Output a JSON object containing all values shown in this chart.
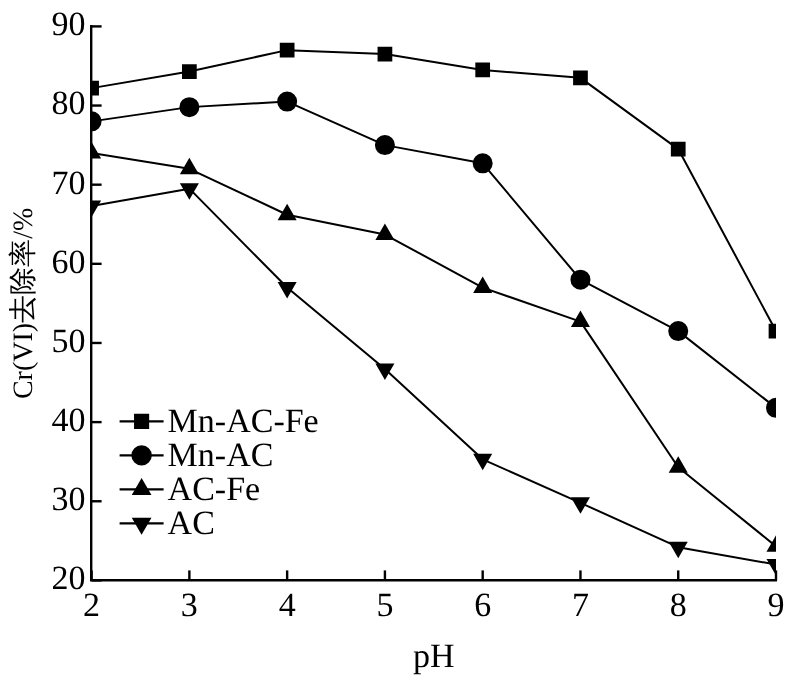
{
  "chart_data": {
    "type": "line",
    "xlabel": "pH",
    "ylabel": "Cr(VI)去除率/%",
    "x": [
      2,
      3,
      4,
      5,
      6,
      7,
      8,
      9
    ],
    "xlim": [
      2,
      9
    ],
    "xticks": [
      2,
      3,
      4,
      5,
      6,
      7,
      8,
      9
    ],
    "ylim": [
      20,
      90
    ],
    "yticks": [
      20,
      30,
      40,
      50,
      60,
      70,
      80,
      90
    ],
    "grid": false,
    "legend": "bottom left",
    "line_style": "solid",
    "series": [
      {
        "name": "Mn-AC-Fe",
        "color": "#000000",
        "marker": "square",
        "values": [
          82.2,
          84.3,
          87,
          86.5,
          84.5,
          83.5,
          74.5,
          51.5
        ]
      },
      {
        "name": "Mn-AC",
        "color": "#000000",
        "marker": "circle",
        "values": [
          78,
          79.8,
          80.5,
          75,
          72.7,
          58,
          51.5,
          41.8
        ]
      },
      {
        "name": "AC-Fe",
        "color": "#000000",
        "marker": "triangle",
        "values": [
          74,
          72,
          66.2,
          63.7,
          57,
          52.7,
          34.3,
          24.3
        ]
      },
      {
        "name": "AC",
        "color": "#000000",
        "marker": "triangle-down",
        "values": [
          67.3,
          69.5,
          57,
          46.7,
          35.3,
          29.8,
          24.2,
          22
        ]
      }
    ]
  }
}
